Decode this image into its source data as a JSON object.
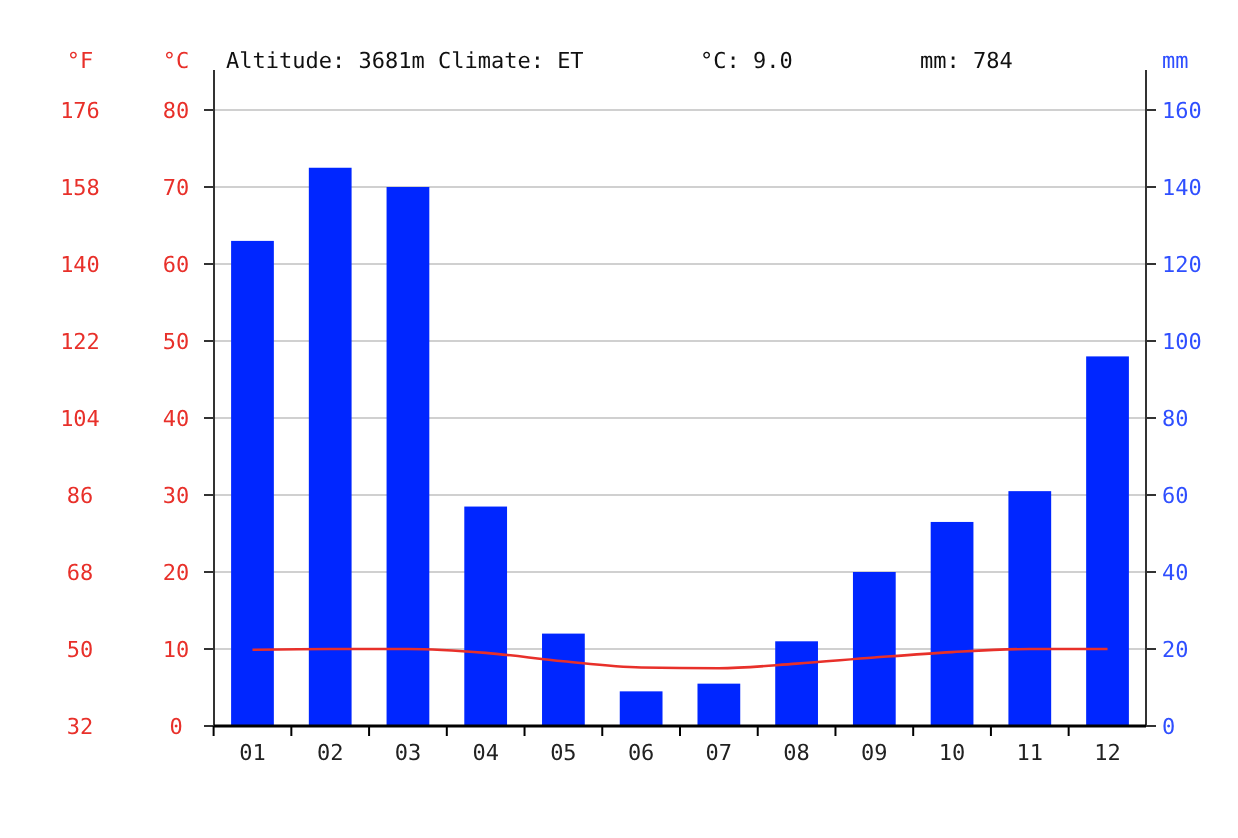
{
  "chart_data": {
    "type": "bar",
    "title": "Altitude: 3681m Climate: ET",
    "annotations": [
      "°C: 9.0",
      "mm: 784"
    ],
    "categories": [
      "01",
      "02",
      "03",
      "04",
      "05",
      "06",
      "07",
      "08",
      "09",
      "10",
      "11",
      "12"
    ],
    "series": [
      {
        "axis": "y2",
        "color": "#0026ff",
        "values": [
          126,
          145,
          140,
          57,
          24,
          9,
          11,
          22,
          40,
          53,
          61,
          96
        ]
      },
      {
        "type": "line",
        "axis": "y",
        "color": "#e8302a",
        "values": [
          9.9,
          10,
          10,
          9.5,
          8.4,
          7.6,
          7.5,
          8.1,
          8.9,
          9.6,
          10,
          10
        ]
      }
    ],
    "ylabel": "°C",
    "ylim": [
      0,
      80
    ],
    "yticks": [
      0,
      10,
      20,
      30,
      40,
      50,
      60,
      70,
      80
    ],
    "y3label": "°F",
    "y3lim": [
      32,
      176
    ],
    "y3ticks": [
      32,
      50,
      68,
      86,
      104,
      122,
      140,
      158,
      176
    ],
    "y2label": "mm",
    "y2lim": [
      0,
      160
    ],
    "y2ticks": [
      0,
      20,
      40,
      60,
      80,
      100,
      120,
      140,
      160
    ],
    "grid": "y"
  }
}
